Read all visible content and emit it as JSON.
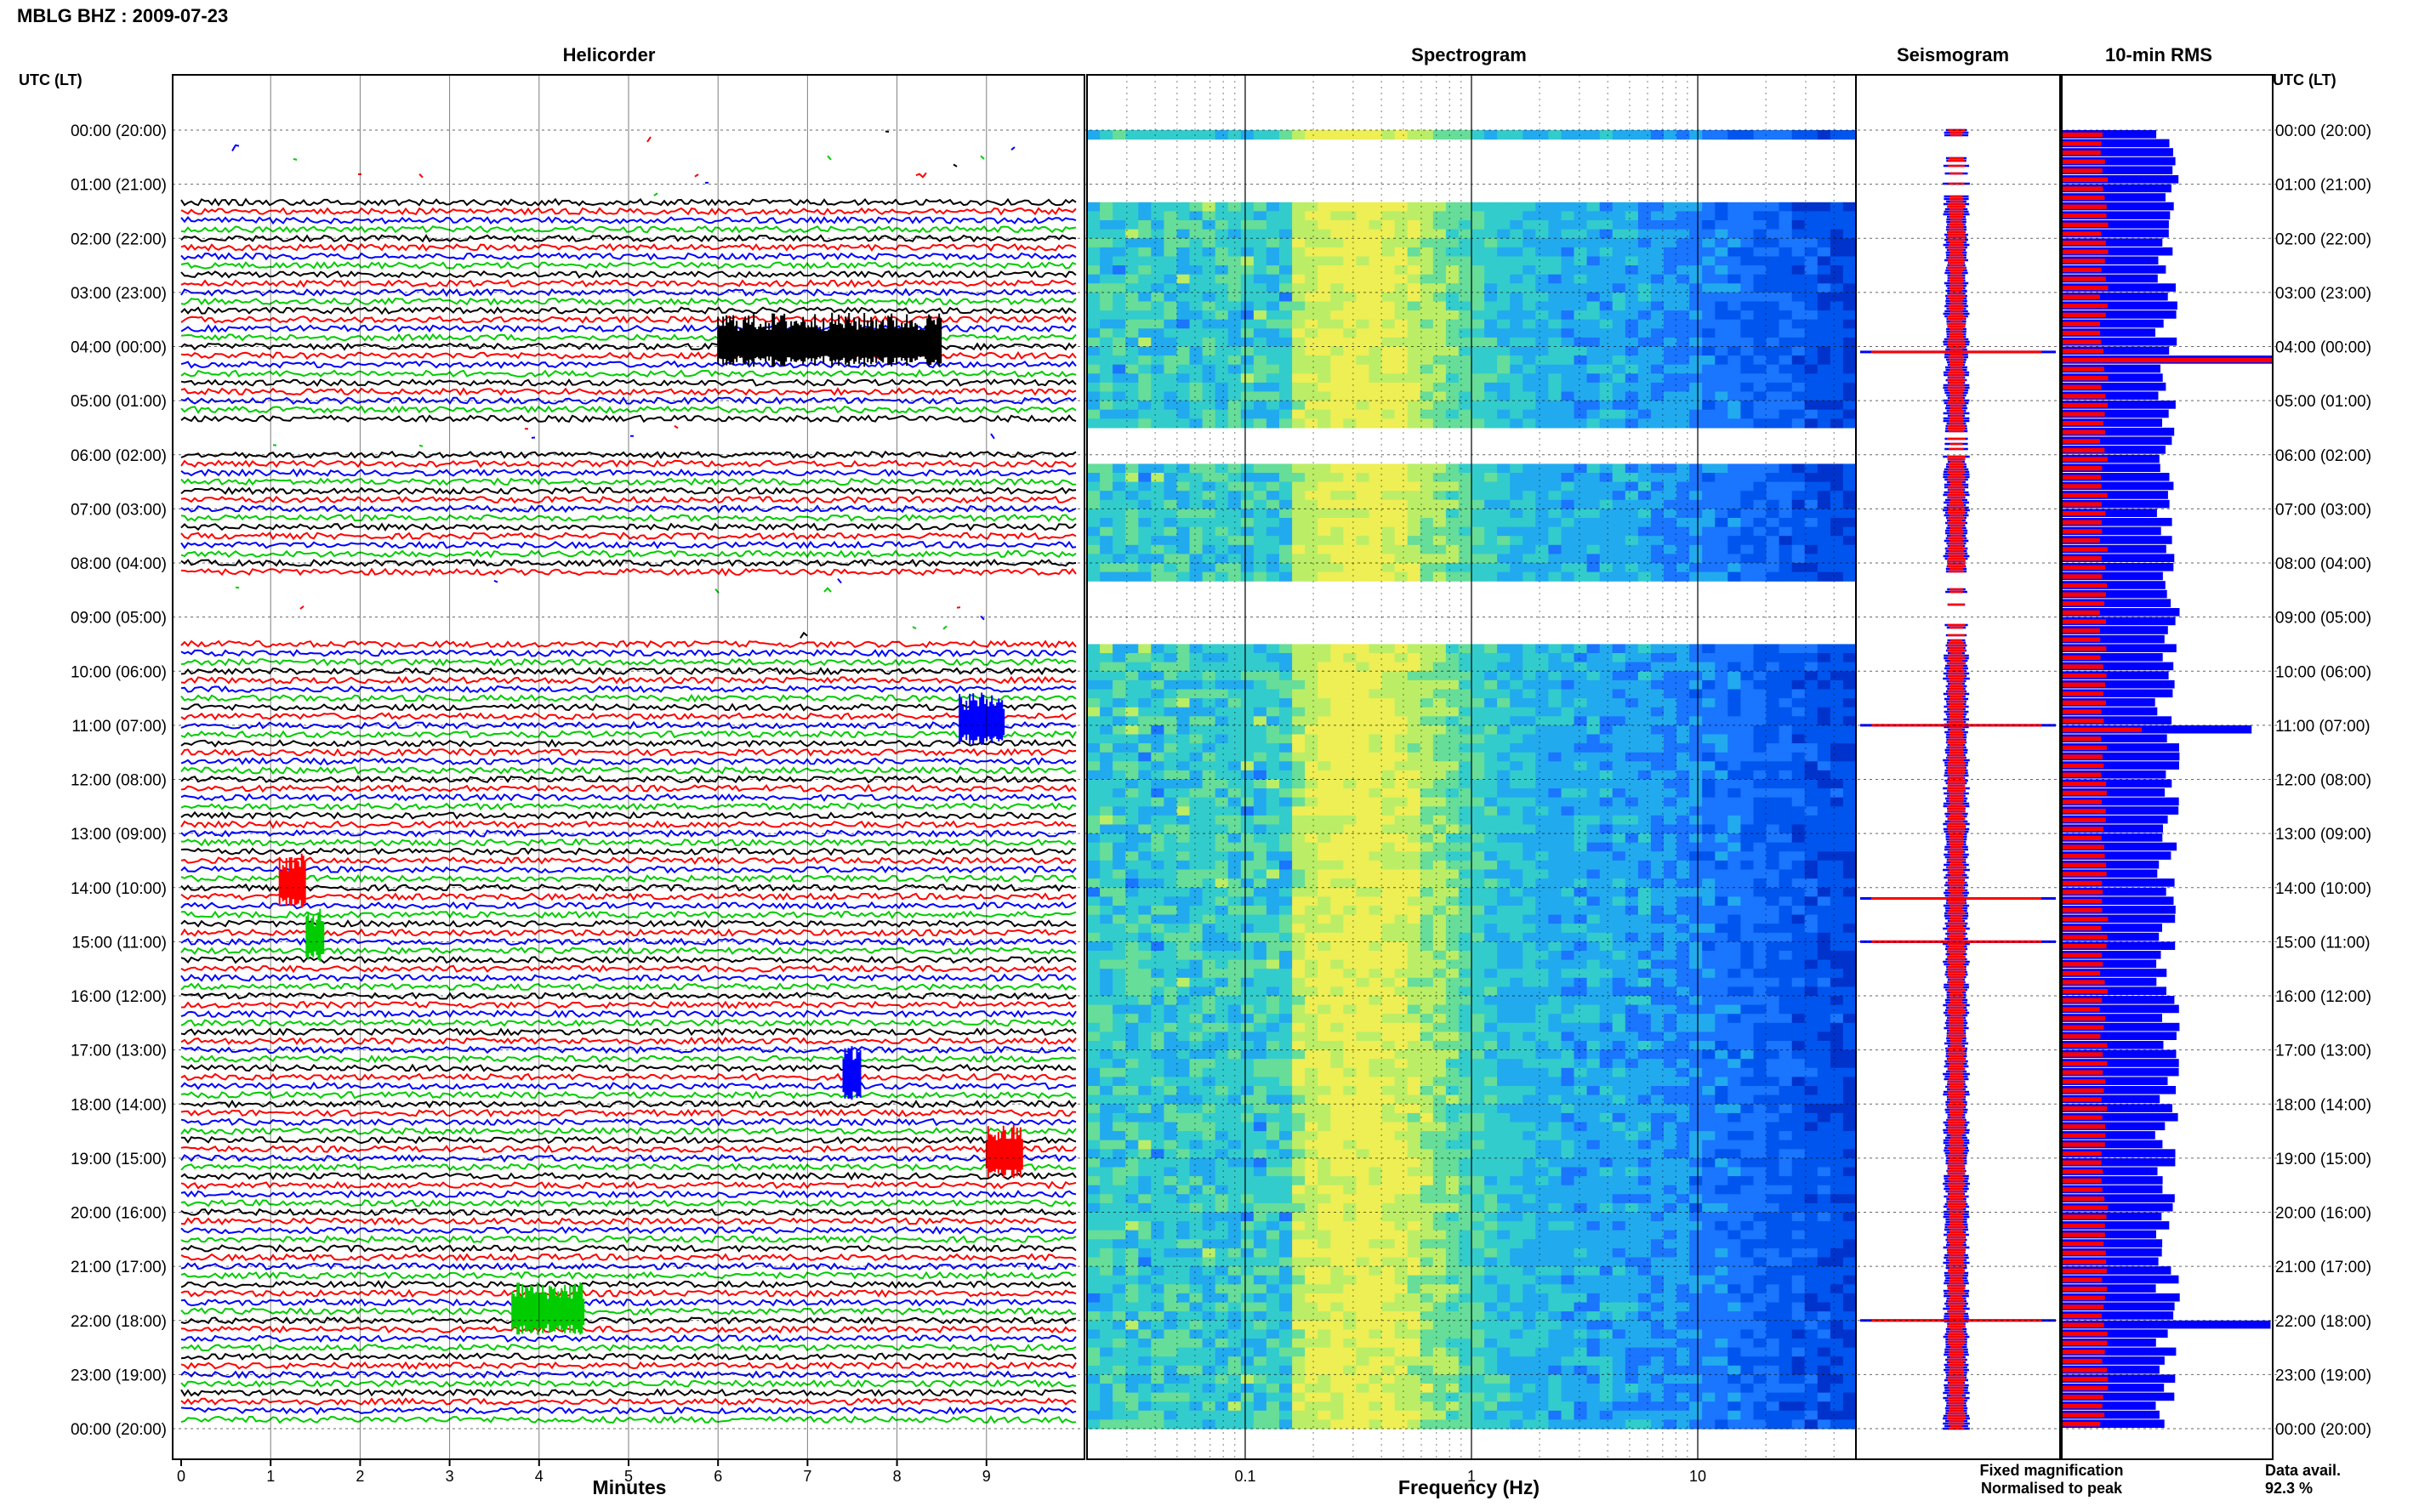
{
  "header": {
    "station": "MBLG BHZ : 2009-07-23"
  },
  "colors": {
    "helicorder_traces": [
      "#000000",
      "#ff0000",
      "#0000ff",
      "#00cc00"
    ],
    "fixed": "#0000ff",
    "normalised": "#ff0000",
    "grid": "#000000"
  },
  "panels": {
    "helicorder": "Helicorder",
    "spectrogram": "Spectrogram",
    "seismogram": "Seismogram",
    "rms": "10-min RMS"
  },
  "axes": {
    "left_title": "UTC (LT)",
    "right_title": "UTC (LT)",
    "hours": [
      "00:00 (20:00)",
      "01:00 (21:00)",
      "02:00 (22:00)",
      "03:00 (23:00)",
      "04:00 (00:00)",
      "05:00 (01:00)",
      "06:00 (02:00)",
      "07:00 (03:00)",
      "08:00 (04:00)",
      "09:00 (05:00)",
      "10:00 (06:00)",
      "11:00 (07:00)",
      "12:00 (08:00)",
      "13:00 (09:00)",
      "14:00 (10:00)",
      "15:00 (11:00)",
      "16:00 (12:00)",
      "17:00 (13:00)",
      "18:00 (14:00)",
      "19:00 (15:00)",
      "20:00 (16:00)",
      "21:00 (17:00)",
      "22:00 (18:00)",
      "23:00 (19:00)",
      "00:00 (20:00)"
    ],
    "minute_ticks": [
      "0",
      "1",
      "2",
      "3",
      "4",
      "5",
      "6",
      "7",
      "8",
      "9"
    ],
    "minutes_label": "Minutes",
    "freq_ticks": [
      "0.1",
      "1",
      "10"
    ],
    "freq_label": "Frequency (Hz)"
  },
  "legend": {
    "fixed": "Fixed magnification",
    "normalised": "Normalised to peak"
  },
  "availability": {
    "label": "Data avail.",
    "value": "92.3 %"
  },
  "chart_data": [
    {
      "type": "line",
      "title": "Helicorder",
      "xlabel": "Minutes",
      "xlim": [
        0,
        10
      ],
      "rows_per_hour": 6,
      "events": [
        {
          "hour": 4.0,
          "minute_start": 6.0,
          "minute_end": 8.5,
          "color": "black"
        },
        {
          "hour": 11.0,
          "minute_start": 8.7,
          "minute_end": 9.2,
          "color": "blue"
        },
        {
          "hour": 14.0,
          "minute_start": 1.1,
          "minute_end": 1.4,
          "color": "red"
        },
        {
          "hour": 15.0,
          "minute_start": 1.4,
          "minute_end": 1.6,
          "color": "green"
        },
        {
          "hour": 17.55,
          "minute_start": 7.4,
          "minute_end": 7.6,
          "color": "blue"
        },
        {
          "hour": 19.0,
          "minute_start": 9.0,
          "minute_end": 9.4,
          "color": "red"
        },
        {
          "hour": 21.9,
          "minute_start": 3.7,
          "minute_end": 4.5,
          "color": "green"
        }
      ],
      "gaps_hours": [
        [
          0.0,
          1.2
        ],
        [
          5.5,
          6.0
        ],
        [
          8.3,
          9.5
        ]
      ]
    },
    {
      "type": "heatmap",
      "title": "Spectrogram",
      "xlabel": "Frequency (Hz)",
      "x_scale": "log",
      "xlim": [
        0.02,
        50
      ],
      "gaps_hours": [
        [
          0.1,
          1.2
        ],
        [
          5.5,
          6.1
        ],
        [
          8.2,
          9.4
        ]
      ]
    },
    {
      "type": "line",
      "title": "Seismogram",
      "series": [
        {
          "name": "Fixed magnification",
          "color": "blue"
        },
        {
          "name": "Normalised to peak",
          "color": "red"
        }
      ],
      "spikes_hours": [
        4.1,
        11.0,
        14.2,
        15.0,
        22.0
      ]
    },
    {
      "type": "bar",
      "title": "10-min RMS",
      "orientation": "horizontal",
      "bins_per_hour": 6,
      "series": [
        {
          "name": "Fixed magnification",
          "color": "blue",
          "typical_fraction": 0.5
        },
        {
          "name": "Normalised to peak",
          "color": "red",
          "typical_fraction": 0.2
        }
      ],
      "peaks": [
        {
          "hour": 4.1,
          "fixed": 1.0,
          "normalised": 1.0
        },
        {
          "hour": 11.05,
          "fixed": 0.9,
          "normalised": 0.38
        },
        {
          "hour": 22.0,
          "fixed": 0.99,
          "normalised": 0.2
        }
      ]
    }
  ]
}
